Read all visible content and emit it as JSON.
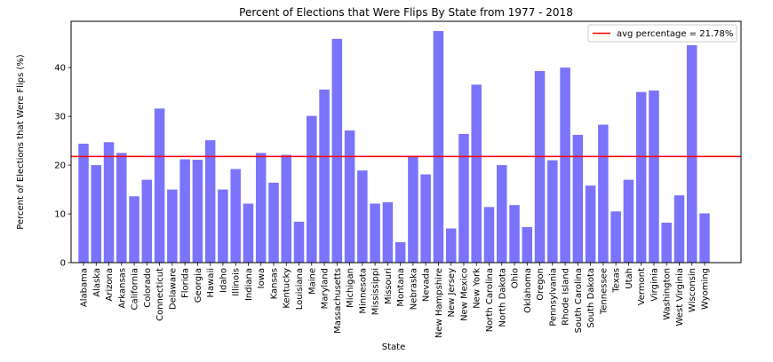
{
  "chart_data": {
    "type": "bar",
    "title": "Percent of Elections that Were Flips By State from 1977 - 2018",
    "xlabel": "State",
    "ylabel": "Percent of Elections that Were Flips (%)",
    "ylim": [
      0,
      49.5
    ],
    "yticks": [
      0,
      10,
      20,
      30,
      40
    ],
    "bar_color": "#7b73fb",
    "categories": [
      "Alabama",
      "Alaska",
      "Arizona",
      "Arkansas",
      "California",
      "Colorado",
      "Connecticut",
      "Delaware",
      "Florida",
      "Georgia",
      "Hawaii",
      "Idaho",
      "Illinois",
      "Indiana",
      "Iowa",
      "Kansas",
      "Kentucky",
      "Louisiana",
      "Maine",
      "Maryland",
      "Massachusetts",
      "Michigan",
      "Minnesota",
      "Mississippi",
      "Missouri",
      "Montana",
      "Nebraska",
      "Nevada",
      "New Hampshire",
      "New Jersey",
      "New Mexico",
      "New York",
      "North Carolina",
      "North Dakota",
      "Ohio",
      "Oklahoma",
      "Oregon",
      "Pennsylvania",
      "Rhode Island",
      "South Carolina",
      "South Dakota",
      "Tennessee",
      "Texas",
      "Utah",
      "Vermont",
      "Virginia",
      "Washington",
      "West Virginia",
      "Wisconsin",
      "Wyoming"
    ],
    "values": [
      24.4,
      20.0,
      24.7,
      22.5,
      13.6,
      17.0,
      31.6,
      15.0,
      21.2,
      21.1,
      25.1,
      15.0,
      19.2,
      12.1,
      22.5,
      16.4,
      22.1,
      8.4,
      30.1,
      35.5,
      45.9,
      27.1,
      18.9,
      12.1,
      12.4,
      4.2,
      21.9,
      18.1,
      47.5,
      7.0,
      26.4,
      36.5,
      11.4,
      20.0,
      11.8,
      7.3,
      39.3,
      21.0,
      40.0,
      26.2,
      15.8,
      28.3,
      10.5,
      17.0,
      35.0,
      35.3,
      8.2,
      13.8,
      44.6,
      10.1
    ],
    "reference_line": {
      "label": "avg percentage = 21.78%",
      "value": 21.78,
      "color": "#ff0000"
    },
    "legend_position": "top-right",
    "grid": false
  }
}
